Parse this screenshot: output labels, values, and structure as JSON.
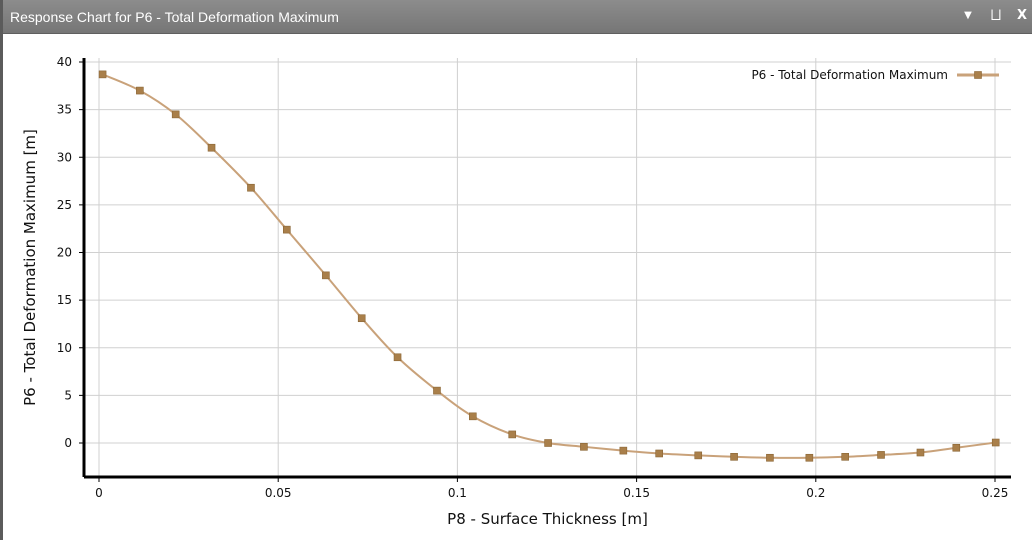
{
  "window": {
    "title": "Response Chart for P6 - Total Deformation Maximum",
    "dropdown_icon": "chevron-down-icon",
    "pin_icon": "pin-icon",
    "close_icon": "close-icon",
    "dropdown_glyph": "▼",
    "pin_glyph": "⨆",
    "close_glyph": "X"
  },
  "chart_data": {
    "type": "line",
    "title": "",
    "xlabel": "P8 - Surface Thickness  [m]",
    "ylabel": "P6 - Total Deformation Maximum  [m]",
    "xlim": [
      0,
      0.25
    ],
    "ylim": [
      -3.5,
      40
    ],
    "xticks": [
      0,
      0.05,
      0.1,
      0.15,
      0.2,
      0.25
    ],
    "xtick_labels": [
      "0",
      "0.05",
      "0.1",
      "0.15",
      "0.2",
      "0.25"
    ],
    "yticks": [
      0,
      5,
      10,
      15,
      20,
      25,
      30,
      35,
      40
    ],
    "ytick_labels": [
      "0",
      "5",
      "10",
      "15",
      "20",
      "25",
      "30",
      "35",
      "40"
    ],
    "grid": true,
    "legend_position": "top-right",
    "series": [
      {
        "name": "P6 - Total Deformation Maximum",
        "color": "#c9a27a",
        "marker_color": "#a97f4a",
        "x": [
          0.001,
          0.0114,
          0.0214,
          0.0314,
          0.0424,
          0.0524,
          0.0633,
          0.0733,
          0.0833,
          0.0943,
          0.1043,
          0.1153,
          0.1253,
          0.1353,
          0.1463,
          0.1563,
          0.1672,
          0.1772,
          0.1872,
          0.1982,
          0.2082,
          0.2182,
          0.2292,
          0.2392,
          0.2502
        ],
        "y": [
          38.7,
          37.0,
          34.5,
          31.0,
          26.8,
          22.4,
          17.6,
          13.1,
          9.0,
          5.5,
          2.8,
          0.9,
          0.0,
          -0.4,
          -0.8,
          -1.1,
          -1.3,
          -1.45,
          -1.55,
          -1.55,
          -1.45,
          -1.25,
          -1.0,
          -0.5,
          0.05
        ]
      }
    ]
  }
}
